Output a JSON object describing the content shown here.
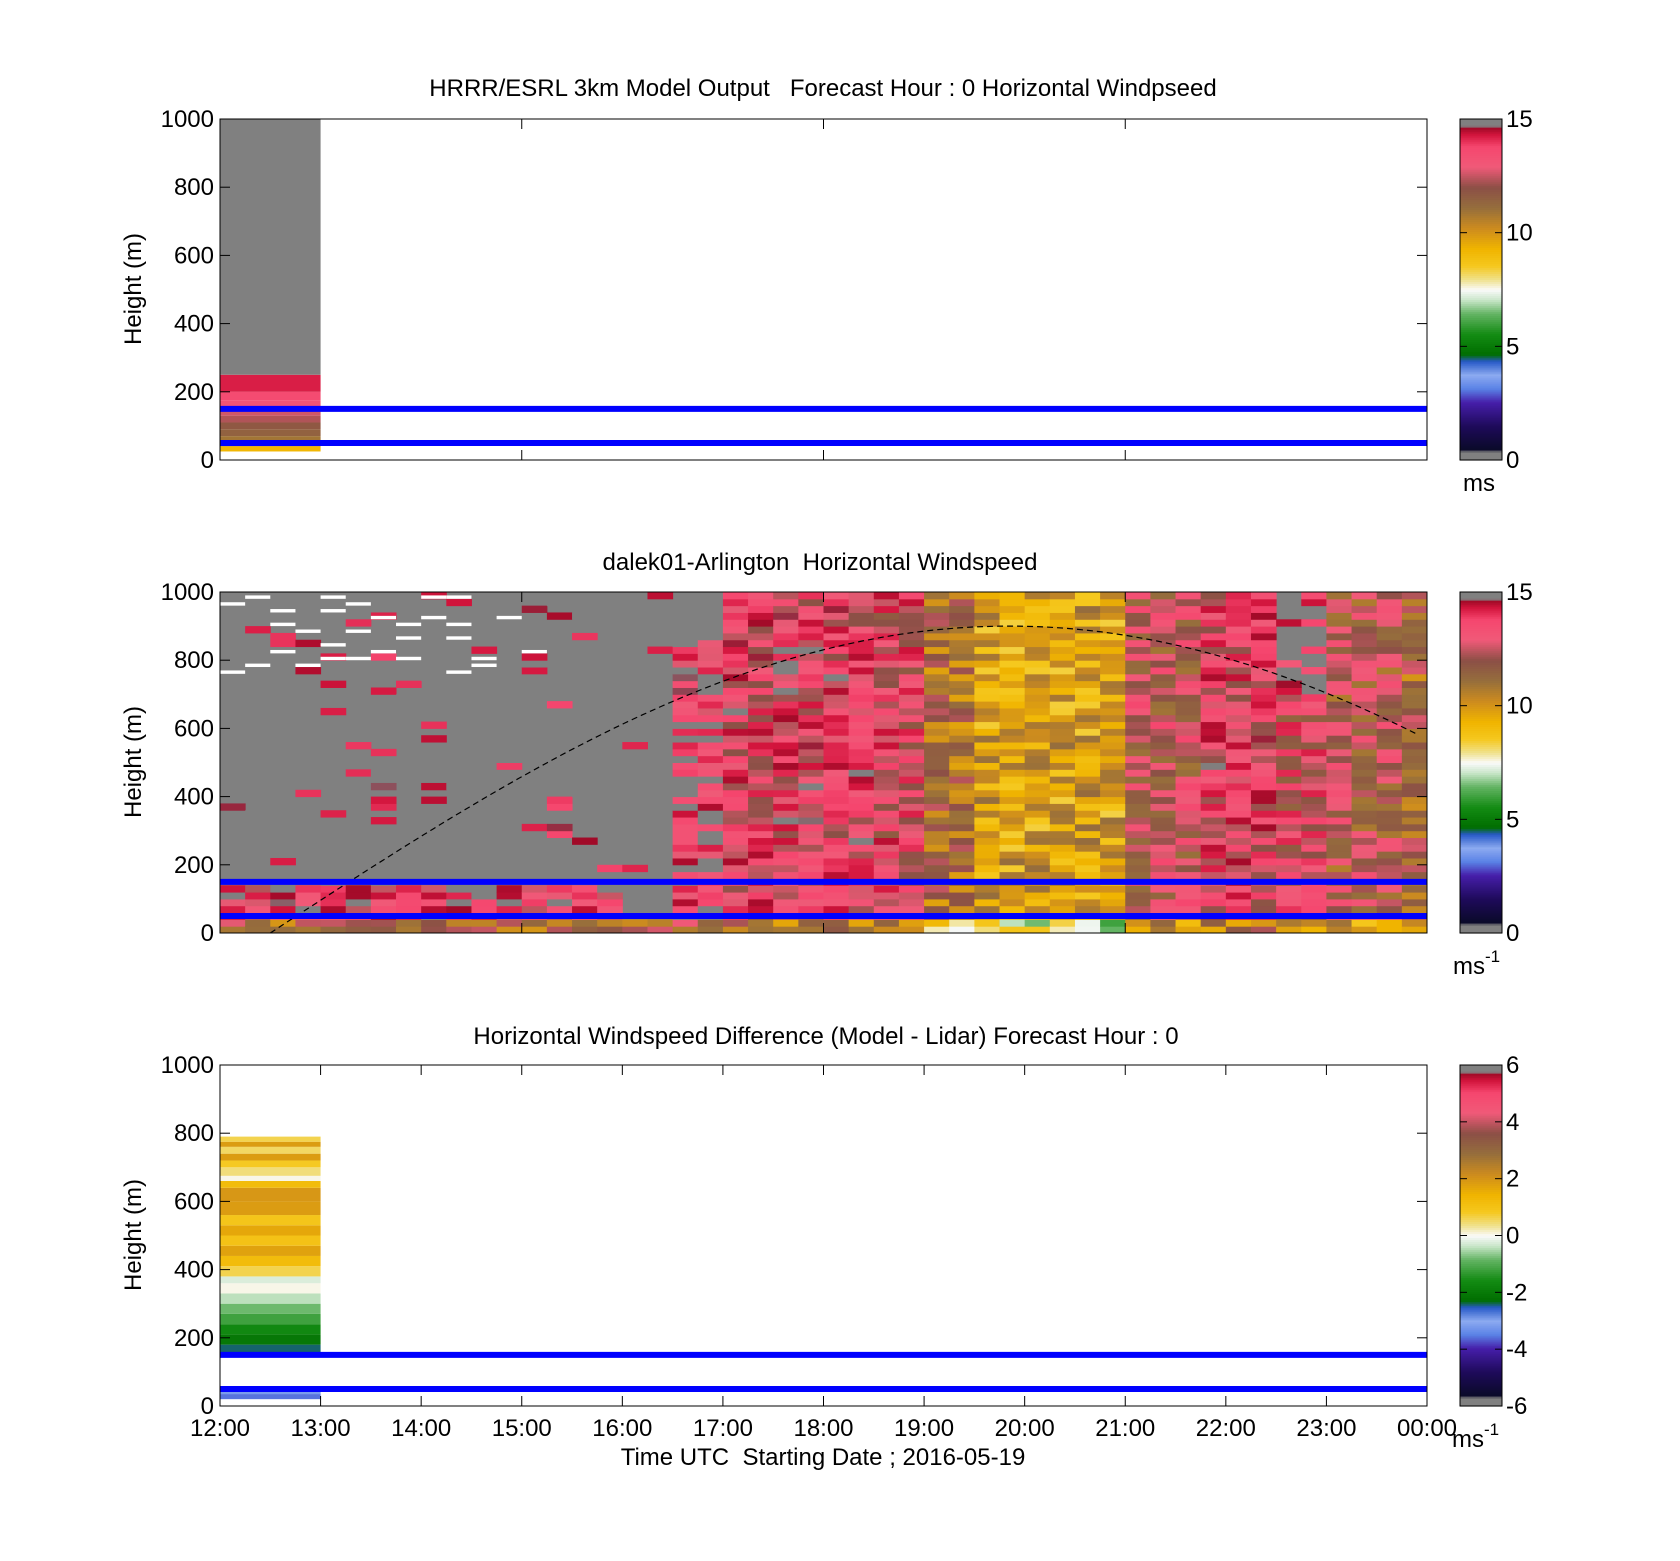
{
  "colors": {
    "reference_line": "#0000ff",
    "no_data": "#808080",
    "missing": "#ffffff"
  },
  "chart_data": [
    {
      "type": "heatmap",
      "title": "HRRR/ESRL 3km Model Output   Forecast Hour : 0 Horizontal Windpseed",
      "xlabel": "",
      "ylabel": "Height (m)",
      "x_tick_labels": [],
      "ylim": [
        0,
        1000
      ],
      "yticks": [
        0,
        200,
        400,
        600,
        800,
        1000
      ],
      "colorbar": {
        "range": [
          0,
          15
        ],
        "ticks": [
          0,
          5,
          10,
          15
        ],
        "unit": "ms",
        "unit_sup": ""
      },
      "reference_lines_m": [
        50,
        150
      ],
      "columns": [
        {
          "hour_start": 0,
          "hour_end": 1,
          "bands": [
            {
              "h0": 25,
              "h1": 40,
              "v": 9.2
            },
            {
              "h0": 40,
              "h1": 55,
              "v": 10.6
            },
            {
              "h0": 55,
              "h1": 70,
              "v": 11.0
            },
            {
              "h0": 70,
              "h1": 90,
              "v": 11.6
            },
            {
              "h0": 90,
              "h1": 110,
              "v": 11.9
            },
            {
              "h0": 110,
              "h1": 130,
              "v": 12.5
            },
            {
              "h0": 130,
              "h1": 150,
              "v": 12.8
            },
            {
              "h0": 150,
              "h1": 175,
              "v": 13.4
            },
            {
              "h0": 175,
              "h1": 200,
              "v": 13.8
            },
            {
              "h0": 200,
              "h1": 250,
              "v": 14.5
            },
            {
              "h0": 250,
              "h1": 1000,
              "v": null
            }
          ]
        }
      ]
    },
    {
      "type": "heatmap",
      "title": "dalek01-Arlington  Horizontal Windspeed",
      "xlabel": "",
      "ylabel": "Height (m)",
      "x_tick_labels": [],
      "ylim": [
        0,
        1000
      ],
      "yticks": [
        0,
        200,
        400,
        600,
        800,
        1000
      ],
      "colorbar": {
        "range": [
          0,
          15
        ],
        "ticks": [
          0,
          5,
          10,
          15
        ],
        "unit": "ms",
        "unit_sup": "-1"
      },
      "reference_lines_m": [
        50,
        150
      ],
      "time_step_hours": 0.25,
      "column_regimes": [
        {
          "hour_start": 0,
          "hour_end": 4.0,
          "top_m": 130,
          "mean": 14.0,
          "high_noise": 0.15,
          "above": "no_data"
        },
        {
          "hour_start": 4.0,
          "hour_end": 4.5,
          "top_m": 30,
          "mean": 14.0,
          "high_noise": 0.1,
          "above": "no_data"
        },
        {
          "hour_start": 4.5,
          "hour_end": 5.0,
          "top_m": 850,
          "mean": 14.3,
          "high_noise": 0.35,
          "above": "no_data"
        },
        {
          "hour_start": 5.0,
          "hour_end": 6.5,
          "top_m": 1000,
          "mean": 13.6,
          "high_noise": 0.2,
          "above": "no_data"
        },
        {
          "hour_start": 6.5,
          "hour_end": 7.0,
          "top_m": 1000,
          "mean": 13.3,
          "high_noise": 0.15,
          "above": "no_data"
        },
        {
          "hour_start": 7.0,
          "hour_end": 7.5,
          "top_m": 1000,
          "mean": 11.2,
          "high_noise": 0.05,
          "above": "no_data"
        },
        {
          "hour_start": 7.5,
          "hour_end": 9.0,
          "top_m": 1000,
          "mean": 9.8,
          "high_noise": 0.05,
          "above": "no_data"
        },
        {
          "hour_start": 9.0,
          "hour_end": 9.75,
          "top_m": 1000,
          "mean": 12.5,
          "high_noise": 0.15,
          "above": "no_data"
        },
        {
          "hour_start": 9.75,
          "hour_end": 10.5,
          "top_m": 1000,
          "mean": 13.5,
          "high_noise": 0.2,
          "above": "no_data"
        },
        {
          "hour_start": 10.5,
          "hour_end": 11.0,
          "top_m": 700,
          "mean": 13.0,
          "high_noise": 0.3,
          "above": "no_data"
        },
        {
          "hour_start": 11.0,
          "hour_end": 11.75,
          "top_m": 1000,
          "mean": 12.2,
          "high_noise": 0.3,
          "above": "no_data"
        },
        {
          "hour_start": 11.75,
          "hour_end": 12.0,
          "top_m": 1000,
          "mean": 11.5,
          "high_noise": 0.4,
          "above": "no_data"
        }
      ],
      "sunrise_curve": {
        "style": "dashed",
        "color": "#000000"
      }
    },
    {
      "type": "heatmap",
      "title": "Horizontal Windspeed Difference (Model - Lidar) Forecast Hour : 0",
      "xlabel": "Time UTC  Starting Date ; 2016-05-19",
      "ylabel": "Height (m)",
      "x_tick_labels": [
        "12:00",
        "13:00",
        "14:00",
        "15:00",
        "16:00",
        "17:00",
        "18:00",
        "19:00",
        "20:00",
        "21:00",
        "22:00",
        "23:00",
        "00:00"
      ],
      "ylim": [
        0,
        1000
      ],
      "yticks": [
        0,
        200,
        400,
        600,
        800,
        1000
      ],
      "colorbar": {
        "range": [
          -6,
          6
        ],
        "ticks": [
          -6,
          -4,
          -2,
          0,
          2,
          4,
          6
        ],
        "unit": "ms",
        "unit_sup": "-1"
      },
      "reference_lines_m": [
        50,
        150
      ],
      "columns": [
        {
          "hour_start": 0,
          "hour_end": 1,
          "bands": [
            {
              "h0": 20,
              "h1": 35,
              "v": -3.8
            },
            {
              "h0": 35,
              "h1": 50,
              "v": -3.4
            },
            {
              "h0": 150,
              "h1": 180,
              "v": -2.6
            },
            {
              "h0": 180,
              "h1": 210,
              "v": -2.2
            },
            {
              "h0": 210,
              "h1": 240,
              "v": -1.8
            },
            {
              "h0": 240,
              "h1": 270,
              "v": -1.3
            },
            {
              "h0": 270,
              "h1": 300,
              "v": -0.9
            },
            {
              "h0": 300,
              "h1": 330,
              "v": -0.5
            },
            {
              "h0": 330,
              "h1": 360,
              "v": 0.0
            },
            {
              "h0": 360,
              "h1": 380,
              "v": -0.3
            },
            {
              "h0": 380,
              "h1": 410,
              "v": 0.6
            },
            {
              "h0": 410,
              "h1": 440,
              "v": 1.2
            },
            {
              "h0": 440,
              "h1": 470,
              "v": 1.8
            },
            {
              "h0": 470,
              "h1": 500,
              "v": 1.0
            },
            {
              "h0": 500,
              "h1": 530,
              "v": 1.7
            },
            {
              "h0": 530,
              "h1": 560,
              "v": 0.9
            },
            {
              "h0": 560,
              "h1": 600,
              "v": 1.9
            },
            {
              "h0": 600,
              "h1": 640,
              "v": 2.0
            },
            {
              "h0": 640,
              "h1": 660,
              "v": 1.2
            },
            {
              "h0": 660,
              "h1": 675,
              "v": 0.0
            },
            {
              "h0": 675,
              "h1": 700,
              "v": 0.4
            },
            {
              "h0": 700,
              "h1": 720,
              "v": 0.8
            },
            {
              "h0": 720,
              "h1": 740,
              "v": 1.9
            },
            {
              "h0": 740,
              "h1": 760,
              "v": 0.5
            },
            {
              "h0": 760,
              "h1": 775,
              "v": 1.9
            },
            {
              "h0": 775,
              "h1": 790,
              "v": 0.6
            }
          ]
        }
      ]
    }
  ]
}
